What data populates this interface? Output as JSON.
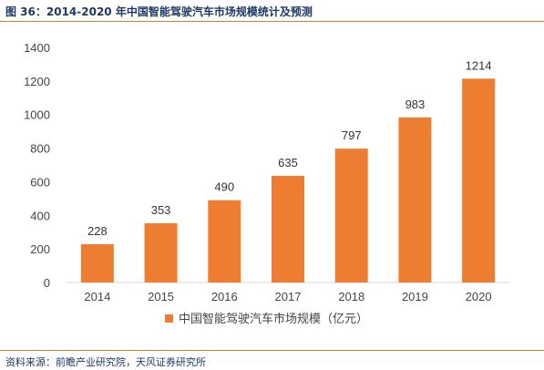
{
  "header": {
    "title": "图 36：2014-2020 年中国智能驾驶汽车市场规模统计及预测"
  },
  "footer": {
    "source": "资料来源：前瞻产业研究院，天风证券研究所"
  },
  "colors": {
    "bar": "#ed7d31",
    "rule": "#c9832e",
    "title": "#1f3864"
  },
  "chart_data": {
    "type": "bar",
    "categories": [
      "2014",
      "2015",
      "2016",
      "2017",
      "2018",
      "2019",
      "2020"
    ],
    "series": [
      {
        "name": "中国智能驾驶汽车市场规模（亿元）",
        "values": [
          228,
          353,
          490,
          635,
          797,
          983,
          1214
        ]
      }
    ],
    "ylim": [
      0,
      1400
    ],
    "yticks": [
      0,
      200,
      400,
      600,
      800,
      1000,
      1200,
      1400
    ],
    "grid": false,
    "legend_position": "bottom",
    "data_labels": true
  }
}
